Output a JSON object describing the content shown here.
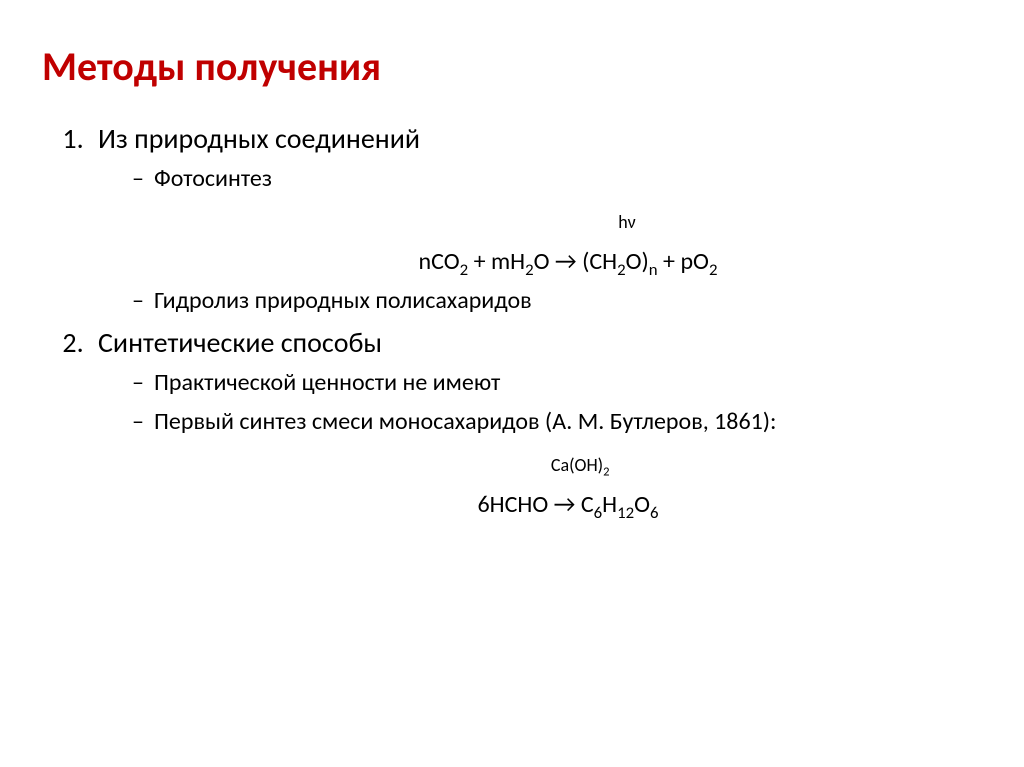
{
  "title_color": "#c00000",
  "text_color": "#000000",
  "background_color": "#ffffff",
  "title": "Методы получения",
  "items": [
    {
      "label": "Из природных соединений",
      "sub": [
        {
          "label": "Фотосинтез"
        },
        {
          "equation": {
            "annot": "hν",
            "lhs1": "nCO",
            "lhs1_sub": "2",
            "plus1": " + ",
            "lhs2": "mH",
            "lhs2_sub": "2",
            "lhs2_tail": "O",
            "arrow": " → ",
            "rhs1": "(CH",
            "rhs1_sub": "2",
            "rhs1_tail": "O)",
            "rhs1_nsub": "n",
            "plus2": " + ",
            "rhs2": "pO",
            "rhs2_sub": "2"
          }
        },
        {
          "label": "Гидролиз природных полисахаридов"
        }
      ]
    },
    {
      "label": "Синтетические способы",
      "sub": [
        {
          "label": "Практической ценности не имеют"
        },
        {
          "label": "Первый синтез смеси моносахаридов (А. М. Бутлеров, 1861):"
        },
        {
          "equation": {
            "annot_pre": "Ca(OH)",
            "annot_sub": "2",
            "lhs": "6HCHO",
            "gap1": "          ",
            "arrow": "→",
            "gap2": "          ",
            "rhs": "C",
            "rhs_sub1": "6",
            "rhs_mid": "H",
            "rhs_sub2": "12",
            "rhs_tail": "O",
            "rhs_sub3": "6"
          }
        }
      ]
    }
  ]
}
